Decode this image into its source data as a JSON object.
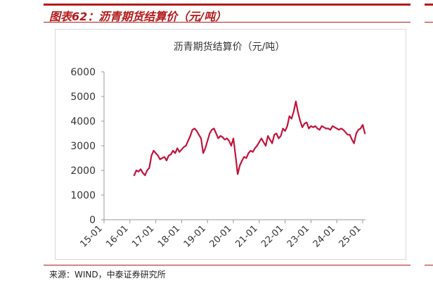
{
  "figure": {
    "title": "图表62：沥青期货结算价（元/吨）",
    "source": "来源：WIND，中泰证券研究所",
    "accent_color": "#b31b1b"
  },
  "chart_data": {
    "type": "line",
    "title": "沥青期货结算价（元/吨）",
    "xlabel": "",
    "ylabel": "",
    "ylim": [
      0,
      6000
    ],
    "yticks": [
      0,
      1000,
      2000,
      3000,
      4000,
      5000,
      6000
    ],
    "xticks": [
      "15-01",
      "16-01",
      "17-01",
      "18-01",
      "19-01",
      "20-01",
      "21-01",
      "22-01",
      "23-01",
      "24-01",
      "25-01"
    ],
    "grid": false,
    "legend": "none",
    "series": [
      {
        "color": "#c0143c",
        "x": [
          "16-03",
          "16-04",
          "16-05",
          "16-06",
          "16-07",
          "16-08",
          "16-09",
          "16-10",
          "16-11",
          "16-12",
          "17-01",
          "17-02",
          "17-03",
          "17-04",
          "17-05",
          "17-06",
          "17-07",
          "17-08",
          "17-09",
          "17-10",
          "17-11",
          "17-12",
          "18-01",
          "18-02",
          "18-03",
          "18-04",
          "18-05",
          "18-06",
          "18-07",
          "18-08",
          "18-09",
          "18-10",
          "18-11",
          "18-12",
          "19-01",
          "19-02",
          "19-03",
          "19-04",
          "19-05",
          "19-06",
          "19-07",
          "19-08",
          "19-09",
          "19-10",
          "19-11",
          "19-12",
          "20-01",
          "20-02",
          "20-03",
          "20-04",
          "20-05",
          "20-06",
          "20-07",
          "20-08",
          "20-09",
          "20-10",
          "20-11",
          "20-12",
          "21-01",
          "21-02",
          "21-03",
          "21-04",
          "21-05",
          "21-06",
          "21-07",
          "21-08",
          "21-09",
          "21-10",
          "21-11",
          "21-12",
          "22-01",
          "22-02",
          "22-03",
          "22-04",
          "22-05",
          "22-06",
          "22-07",
          "22-08",
          "22-09",
          "22-10",
          "22-11",
          "22-12",
          "23-01",
          "23-02",
          "23-03",
          "23-04",
          "23-05",
          "23-06",
          "23-07",
          "23-08",
          "23-09",
          "23-10",
          "23-11",
          "23-12",
          "24-01",
          "24-02",
          "24-03",
          "24-04",
          "24-05",
          "24-06",
          "24-07",
          "24-08",
          "24-09",
          "24-10",
          "24-11",
          "24-12",
          "25-01",
          "25-02"
        ],
        "values": [
          1800,
          2000,
          1950,
          2050,
          1900,
          1800,
          2000,
          2100,
          2600,
          2800,
          2700,
          2600,
          2450,
          2500,
          2550,
          2400,
          2600,
          2650,
          2800,
          2700,
          2900,
          2750,
          2850,
          2950,
          3000,
          3200,
          3400,
          3650,
          3700,
          3600,
          3450,
          3300,
          2700,
          2900,
          3200,
          3500,
          3650,
          3700,
          3500,
          3300,
          3400,
          3350,
          3250,
          3300,
          3200,
          3000,
          3300,
          2600,
          1850,
          2200,
          2400,
          2550,
          2500,
          2700,
          2800,
          2750,
          2900,
          3000,
          3150,
          3300,
          3150,
          3000,
          3400,
          3250,
          3100,
          3450,
          3500,
          3300,
          3400,
          3700,
          3600,
          3800,
          4200,
          4100,
          4400,
          4800,
          4350,
          4000,
          3750,
          3900,
          3950,
          3700,
          3800,
          3750,
          3800,
          3700,
          3650,
          3800,
          3750,
          3700,
          3700,
          3650,
          3800,
          3750,
          3700,
          3650,
          3700,
          3650,
          3550,
          3450,
          3450,
          3250,
          3100,
          3500,
          3650,
          3700,
          3850,
          3500
        ]
      }
    ]
  }
}
